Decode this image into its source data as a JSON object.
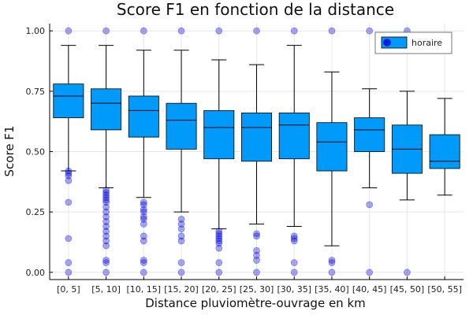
{
  "chart_data": {
    "type": "box",
    "title": "Score F1 en fonction de la distance",
    "xlabel": "Distance pluviomètre-ouvrage en km",
    "ylabel": "Score F1",
    "ylim": [
      -0.03,
      1.03
    ],
    "yticks": [
      0.0,
      0.25,
      0.5,
      0.75,
      1.0
    ],
    "ytick_labels": [
      "0.00",
      "0.25",
      "0.50",
      "0.75",
      "1.00"
    ],
    "grid": true,
    "legend_position": "top-right",
    "colors": {
      "box": "#009AFA",
      "outlier": "#0000DD",
      "whisker": "#000000"
    },
    "series": [
      {
        "name": "horaire",
        "categories": [
          "[0, 5]",
          "[5, 10]",
          "[10, 15]",
          "[15, 20]",
          "[20, 25]",
          "[25, 30]",
          "[30, 35]",
          "[35, 40]",
          "[40, 45]",
          "[45, 50]",
          "[50, 55]"
        ],
        "boxes": [
          {
            "whisker_low": 0.42,
            "q1": 0.64,
            "median": 0.73,
            "q3": 0.78,
            "whisker_high": 0.94,
            "outliers": [
              1.0,
              0.42,
              0.41,
              0.4,
              0.38,
              0.29,
              0.14,
              0.04,
              0.0
            ]
          },
          {
            "whisker_low": 0.35,
            "q1": 0.59,
            "median": 0.7,
            "q3": 0.76,
            "whisker_high": 0.94,
            "outliers": [
              1.0,
              0.34,
              0.33,
              0.32,
              0.31,
              0.3,
              0.29,
              0.27,
              0.25,
              0.23,
              0.21,
              0.19,
              0.17,
              0.15,
              0.13,
              0.11,
              0.05,
              0.04,
              0.0
            ]
          },
          {
            "whisker_low": 0.31,
            "q1": 0.56,
            "median": 0.67,
            "q3": 0.73,
            "whisker_high": 0.92,
            "outliers": [
              1.0,
              0.29,
              0.28,
              0.26,
              0.25,
              0.23,
              0.22,
              0.2,
              0.15,
              0.13,
              0.05,
              0.04,
              0.0
            ]
          },
          {
            "whisker_low": 0.25,
            "q1": 0.51,
            "median": 0.63,
            "q3": 0.7,
            "whisker_high": 0.92,
            "outliers": [
              1.0,
              0.22,
              0.2,
              0.18,
              0.15,
              0.13,
              0.04,
              0.0
            ]
          },
          {
            "whisker_low": 0.18,
            "q1": 0.47,
            "median": 0.6,
            "q3": 0.67,
            "whisker_high": 0.88,
            "outliers": [
              1.0,
              0.17,
              0.16,
              0.15,
              0.14,
              0.13,
              0.12,
              0.1,
              0.04,
              0.0
            ]
          },
          {
            "whisker_low": 0.2,
            "q1": 0.46,
            "median": 0.6,
            "q3": 0.66,
            "whisker_high": 0.86,
            "outliers": [
              1.0,
              0.16,
              0.15,
              0.09,
              0.07,
              0.05,
              0.0
            ]
          },
          {
            "whisker_low": 0.19,
            "q1": 0.47,
            "median": 0.61,
            "q3": 0.66,
            "whisker_high": 0.94,
            "outliers": [
              1.0,
              0.15,
              0.14,
              0.13,
              0.04,
              0.0
            ]
          },
          {
            "whisker_low": 0.11,
            "q1": 0.42,
            "median": 0.54,
            "q3": 0.62,
            "whisker_high": 0.83,
            "outliers": [
              1.0,
              0.05,
              0.04,
              0.0
            ]
          },
          {
            "whisker_low": 0.35,
            "q1": 0.5,
            "median": 0.59,
            "q3": 0.64,
            "whisker_high": 0.76,
            "outliers": [
              1.0,
              0.28,
              0.0
            ]
          },
          {
            "whisker_low": 0.3,
            "q1": 0.41,
            "median": 0.51,
            "q3": 0.61,
            "whisker_high": 0.75,
            "outliers": [
              1.0,
              0.0
            ]
          },
          {
            "whisker_low": 0.32,
            "q1": 0.43,
            "median": 0.46,
            "q3": 0.57,
            "whisker_high": 0.72,
            "outliers": []
          }
        ]
      }
    ]
  }
}
